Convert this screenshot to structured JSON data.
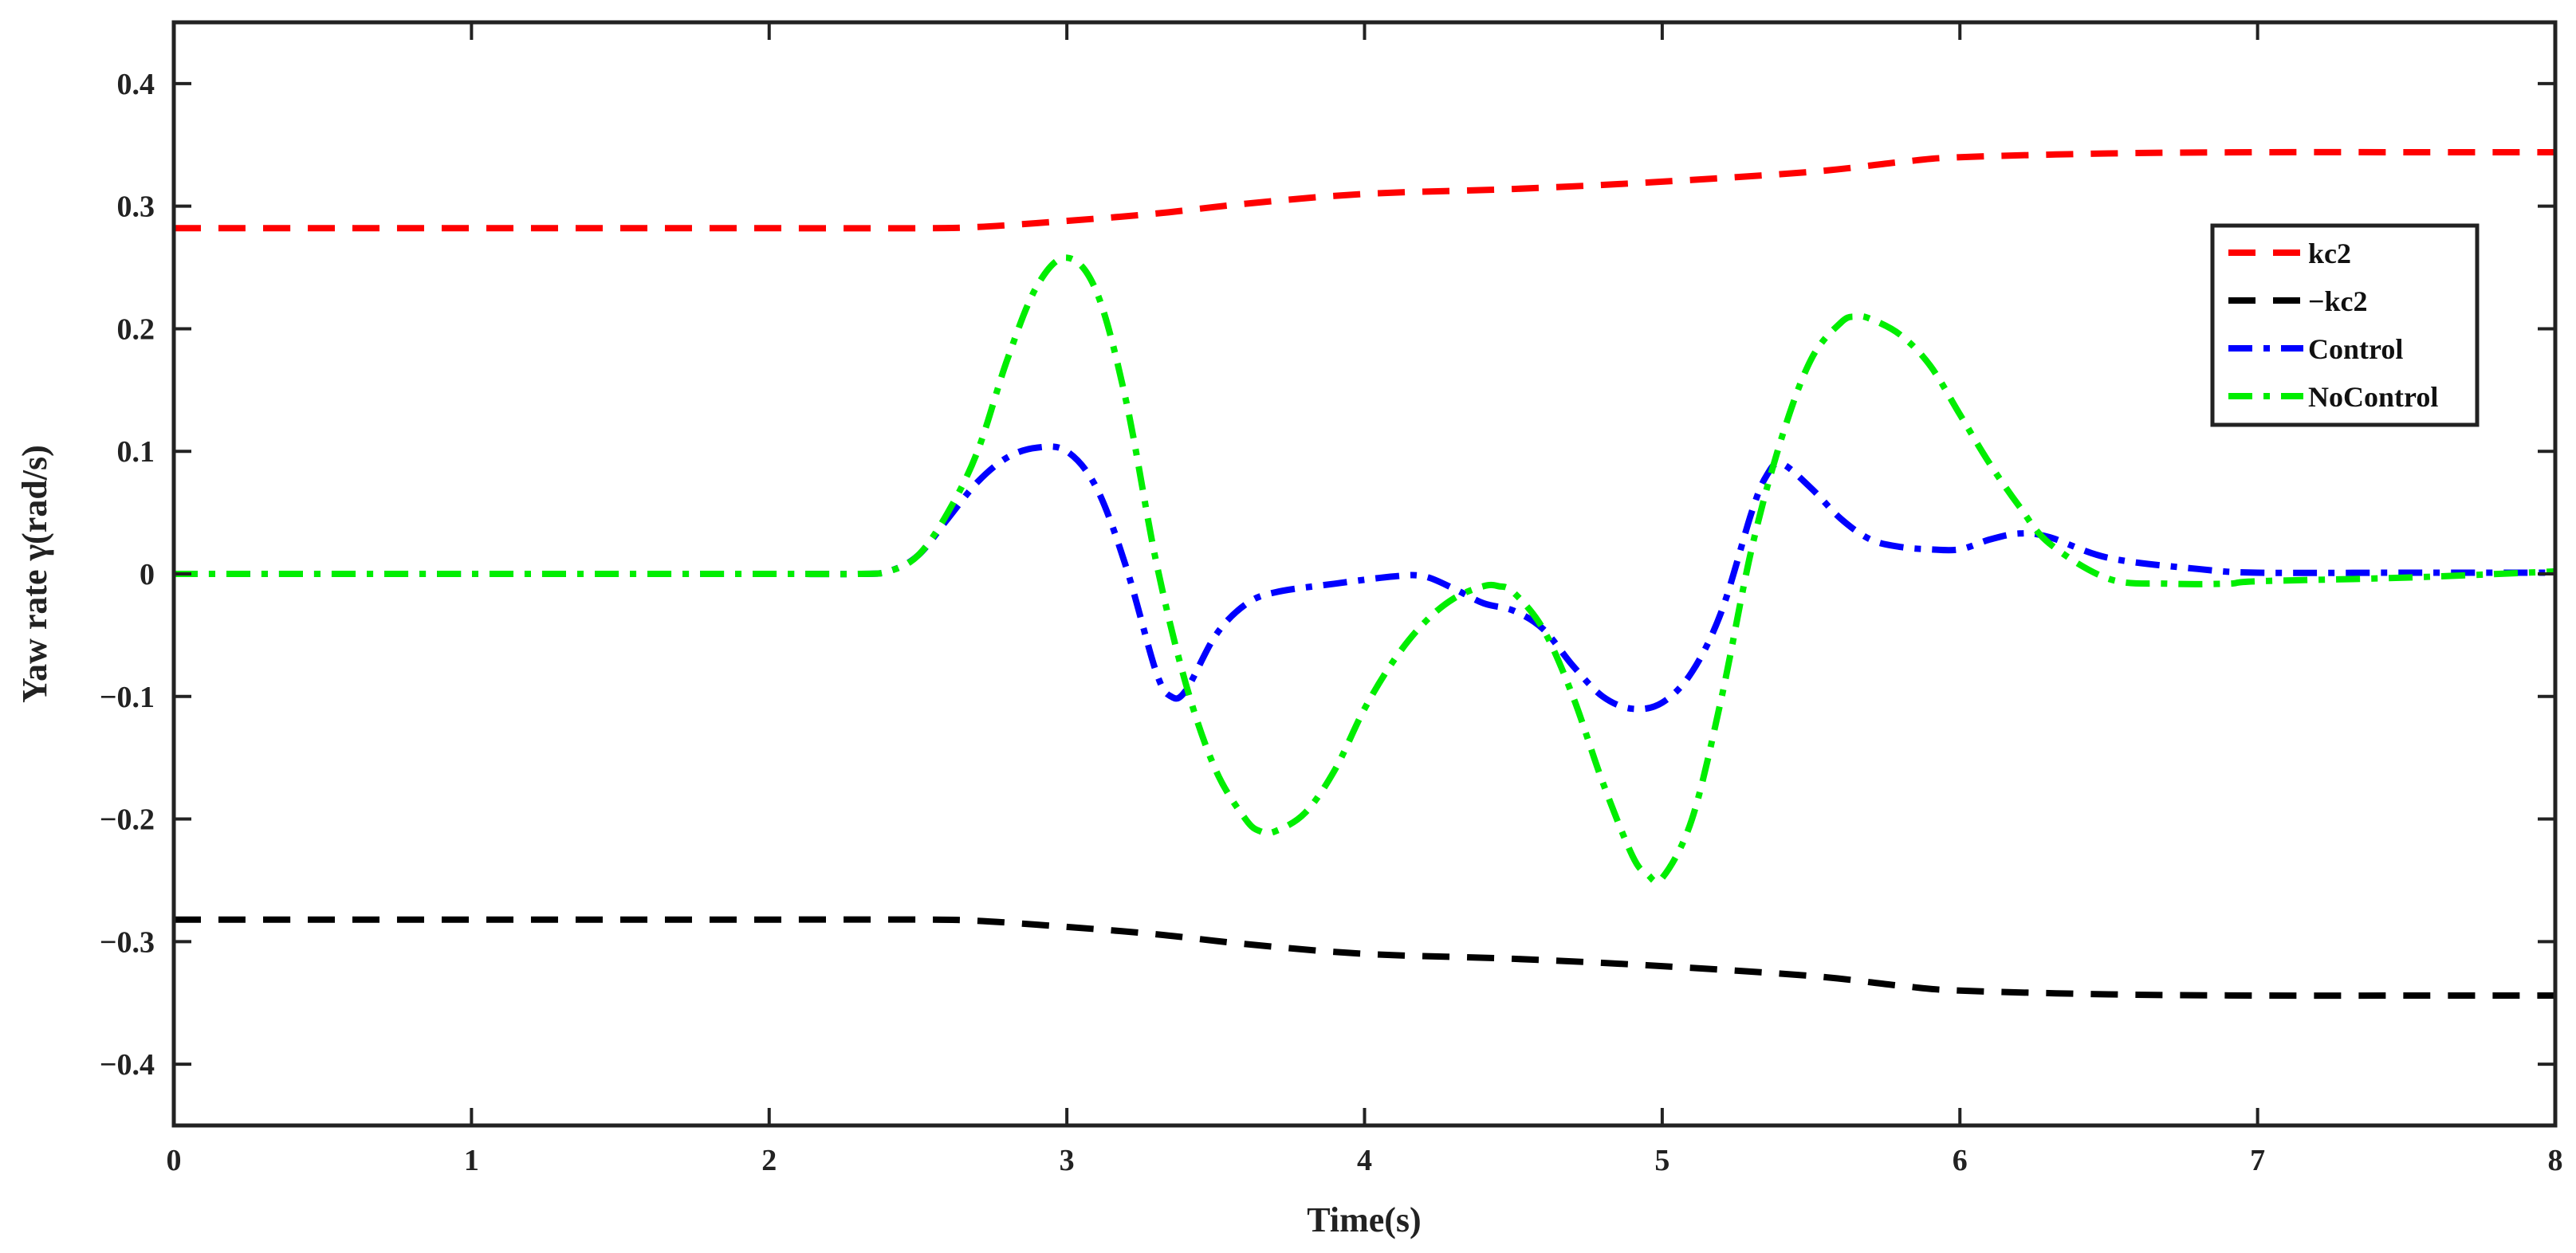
{
  "chart_data": {
    "type": "line",
    "title": "",
    "xlabel": "Time(s)",
    "ylabel": "Yaw rate γ(rad/s)",
    "xlim": [
      0,
      8
    ],
    "ylim": [
      -0.45,
      0.45
    ],
    "xticks": [
      0,
      1,
      2,
      3,
      4,
      5,
      6,
      7,
      8
    ],
    "xtick_labels": [
      "0",
      "1",
      "2",
      "3",
      "4",
      "5",
      "6",
      "7",
      "8"
    ],
    "yticks": [
      -0.4,
      -0.3,
      -0.2,
      -0.1,
      0,
      0.1,
      0.2,
      0.3,
      0.4
    ],
    "ytick_labels": [
      "−0.4",
      "−0.3",
      "−0.2",
      "−0.1",
      "0",
      "0.1",
      "0.2",
      "0.3",
      "0.4"
    ],
    "grid": false,
    "legend_position": "top-right",
    "series": [
      {
        "name": "kc2",
        "color": "#ff0000",
        "dash": "dashed",
        "x": [
          0,
          0.5,
          1,
          1.5,
          2,
          2.5,
          2.7,
          3,
          3.3,
          3.6,
          4,
          4.5,
          5,
          5.5,
          5.8,
          6,
          6.5,
          7,
          7.5,
          8
        ],
        "y": [
          0.282,
          0.282,
          0.282,
          0.282,
          0.282,
          0.282,
          0.283,
          0.288,
          0.294,
          0.302,
          0.31,
          0.314,
          0.32,
          0.328,
          0.336,
          0.34,
          0.343,
          0.344,
          0.344,
          0.344
        ]
      },
      {
        "name": "−kc2",
        "color": "#000000",
        "dash": "dashed",
        "x": [
          0,
          0.5,
          1,
          1.5,
          2,
          2.5,
          2.7,
          3,
          3.3,
          3.6,
          4,
          4.5,
          5,
          5.5,
          5.8,
          6,
          6.5,
          7,
          7.5,
          8
        ],
        "y": [
          -0.282,
          -0.282,
          -0.282,
          -0.282,
          -0.282,
          -0.282,
          -0.283,
          -0.288,
          -0.294,
          -0.302,
          -0.31,
          -0.314,
          -0.32,
          -0.328,
          -0.336,
          -0.34,
          -0.343,
          -0.344,
          -0.344,
          -0.344
        ]
      },
      {
        "name": "Control",
        "color": "#0000ff",
        "dash": "dashdot",
        "x": [
          0,
          1,
          2,
          2.3,
          2.4,
          2.5,
          2.6,
          2.7,
          2.8,
          2.9,
          3.0,
          3.1,
          3.2,
          3.3,
          3.35,
          3.4,
          3.5,
          3.6,
          3.7,
          3.9,
          4.1,
          4.2,
          4.3,
          4.4,
          4.5,
          4.6,
          4.7,
          4.8,
          4.9,
          5.0,
          5.1,
          5.2,
          5.3,
          5.35,
          5.4,
          5.5,
          5.6,
          5.7,
          5.8,
          5.9,
          6.0,
          6.1,
          6.2,
          6.3,
          6.5,
          6.8,
          7.0,
          7.5,
          8.0
        ],
        "y": [
          0,
          0,
          0,
          0,
          0.002,
          0.015,
          0.045,
          0.075,
          0.095,
          0.103,
          0.1,
          0.07,
          0.005,
          -0.08,
          -0.1,
          -0.095,
          -0.05,
          -0.025,
          -0.015,
          -0.008,
          -0.002,
          -0.002,
          -0.012,
          -0.024,
          -0.03,
          -0.045,
          -0.075,
          -0.1,
          -0.11,
          -0.105,
          -0.08,
          -0.03,
          0.05,
          0.08,
          0.09,
          0.07,
          0.045,
          0.028,
          0.022,
          0.02,
          0.02,
          0.028,
          0.033,
          0.03,
          0.013,
          0.004,
          0.001,
          0.001,
          0.001
        ]
      },
      {
        "name": "NoControl",
        "color": "#00ee00",
        "dash": "dashdot",
        "x": [
          0,
          1,
          2,
          2.3,
          2.4,
          2.5,
          2.6,
          2.7,
          2.8,
          2.9,
          3.0,
          3.1,
          3.2,
          3.3,
          3.4,
          3.5,
          3.6,
          3.65,
          3.7,
          3.8,
          3.9,
          4.0,
          4.1,
          4.2,
          4.3,
          4.4,
          4.45,
          4.5,
          4.6,
          4.7,
          4.8,
          4.9,
          4.95,
          5.0,
          5.1,
          5.2,
          5.3,
          5.4,
          5.5,
          5.6,
          5.65,
          5.7,
          5.8,
          5.9,
          6.0,
          6.1,
          6.2,
          6.3,
          6.5,
          6.7,
          6.9,
          7.0,
          7.5,
          8.0
        ],
        "y": [
          0,
          0,
          0,
          0,
          0.002,
          0.015,
          0.05,
          0.1,
          0.175,
          0.235,
          0.258,
          0.23,
          0.14,
          0.01,
          -0.09,
          -0.16,
          -0.2,
          -0.21,
          -0.21,
          -0.195,
          -0.16,
          -0.11,
          -0.07,
          -0.04,
          -0.02,
          -0.01,
          -0.01,
          -0.015,
          -0.045,
          -0.1,
          -0.17,
          -0.23,
          -0.245,
          -0.248,
          -0.2,
          -0.1,
          0.02,
          0.11,
          0.175,
          0.205,
          0.21,
          0.208,
          0.195,
          0.17,
          0.13,
          0.09,
          0.055,
          0.025,
          -0.004,
          -0.008,
          -0.008,
          -0.006,
          -0.003,
          0.002
        ]
      }
    ]
  }
}
